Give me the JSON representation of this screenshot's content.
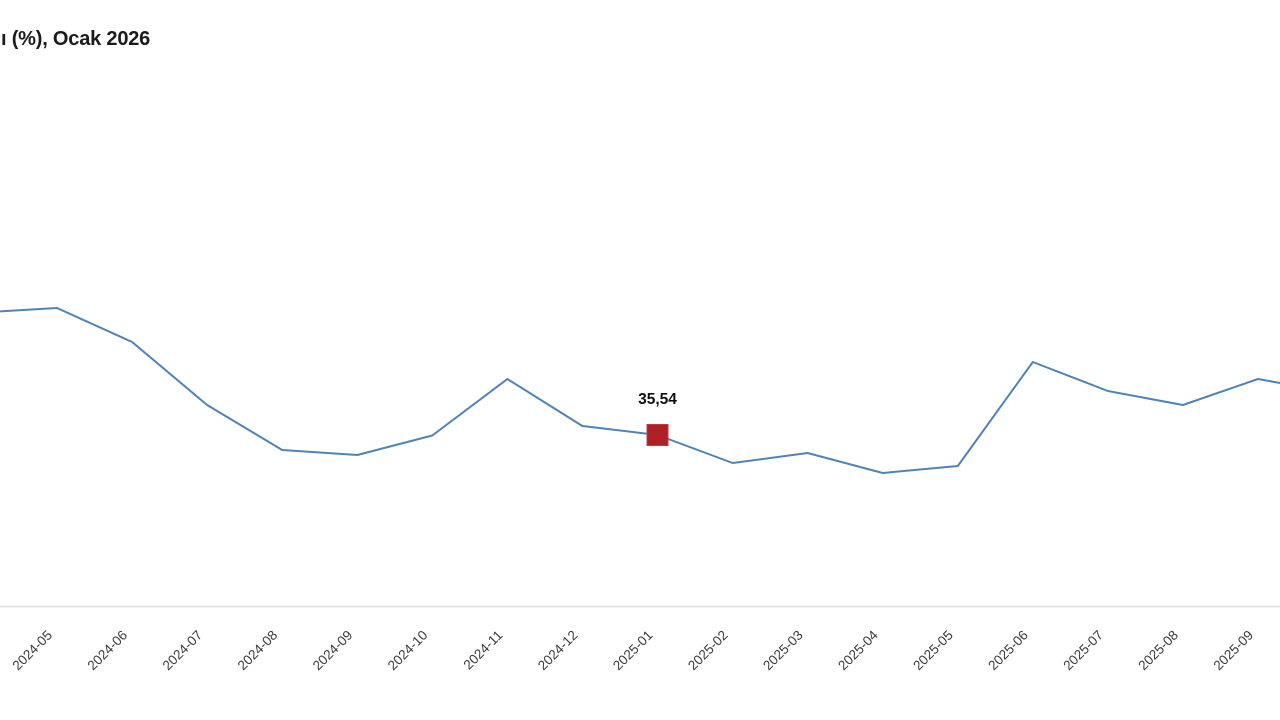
{
  "header": {
    "title": "ı (%), Ocak 2026"
  },
  "chart_data": {
    "type": "line",
    "title": "ı (%), Ocak 2026",
    "xlabel": "",
    "ylabel": "",
    "categories": [
      "2024-05",
      "2024-06",
      "2024-07",
      "2024-08",
      "2024-09",
      "2024-10",
      "2024-11",
      "2024-12",
      "2025-01",
      "2025-02",
      "2025-03",
      "2025-04",
      "2025-05",
      "2025-06",
      "2025-07",
      "2025-08",
      "2025-09"
    ],
    "values": [
      45.7,
      42.98,
      37.94,
      34.34,
      33.94,
      35.5,
      40.02,
      36.26,
      35.54,
      33.3,
      34.1,
      32.5,
      33.06,
      41.38,
      39.06,
      37.94,
      40.02
    ],
    "edge_values": {
      "before": 45.34,
      "after": 38.93
    },
    "highlight": {
      "category": "2025-01",
      "index": 8,
      "value": 35.54,
      "label": "35,54"
    },
    "ylim": [
      21.78,
      62.34
    ],
    "grid": false,
    "legend": "none",
    "colors": {
      "line": "#4f83b8",
      "marker_fill": "#ac2026",
      "marker_border": "#c23a40",
      "axis_line": "#e4e4e4",
      "tick_label": "#3a3a3a",
      "value_label": "#101010",
      "title": "#1b1b1b"
    }
  }
}
